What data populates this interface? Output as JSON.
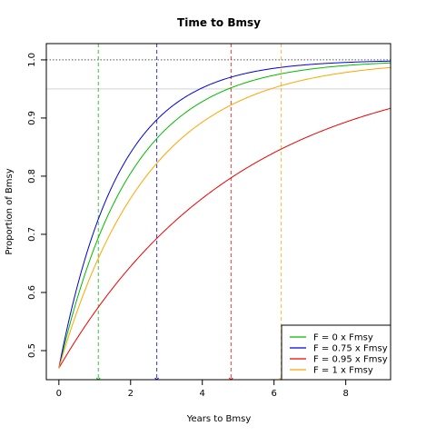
{
  "chart_data": {
    "type": "line",
    "title": "Time to Bmsy",
    "xlabel": "Years to Bmsy",
    "ylabel": "Proportion of Bmsy",
    "xlim": [
      -0.35,
      9.25
    ],
    "ylim": [
      0.45,
      1.028
    ],
    "x_ticks": [
      0,
      2,
      4,
      6,
      8
    ],
    "y_ticks": [
      0.5,
      0.6,
      0.7,
      0.8,
      0.9,
      1.0
    ],
    "x_tick_labels": [
      "0",
      "2",
      "4",
      "6",
      "8"
    ],
    "y_tick_labels": [
      "0.5",
      "0.6",
      "0.7",
      "0.8",
      "0.9",
      "1.0"
    ],
    "grid": false,
    "legend_position": "bottom-right",
    "reference_lines": [
      {
        "orientation": "horizontal",
        "y": 1.0,
        "color": "#555555",
        "style": "dotted"
      },
      {
        "orientation": "horizontal",
        "y": 0.95,
        "color": "#d3d3d3",
        "style": "solid"
      }
    ],
    "series": [
      {
        "name": "F = 0 x Fmsy",
        "color": "#00bb00",
        "x0": 0,
        "y0": 0.47,
        "rate": 0.5,
        "time_to_target": 1.1
      },
      {
        "name": "F = 0.75 x Fmsy",
        "color": "#0000dd",
        "x0": 0,
        "y0": 0.47,
        "rate": 0.6,
        "time_to_target": 2.73
      },
      {
        "name": "F = 0.95 x Fmsy",
        "color": "#ee0000",
        "x0": 0,
        "y0": 0.47,
        "rate": 0.2,
        "time_to_target": 4.8
      },
      {
        "name": "F = 1 x Fmsy",
        "color": "#ffa500",
        "x0": 0,
        "y0": 0.47,
        "rate": 0.4,
        "time_to_target": 6.2
      }
    ]
  }
}
